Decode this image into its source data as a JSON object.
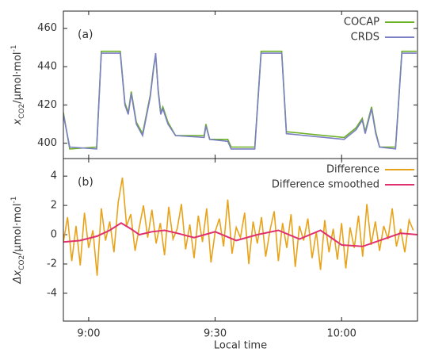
{
  "chart_data": [
    {
      "type": "line",
      "panel_label": "(a)",
      "ylabel": {
        "main": "x",
        "sub": "CO2",
        "unit": "/µmol·mol",
        "sup": "-1"
      },
      "xlim": [
        534,
        618
      ],
      "ylim": [
        392,
        469
      ],
      "yticks": [
        400,
        420,
        440,
        460
      ],
      "legend": "upper right",
      "series": [
        {
          "name": "COCAP",
          "color": "#6ab023",
          "x": [
            534,
            535.5,
            541.9,
            543,
            547.5,
            548.6,
            549.4,
            550.1,
            551.3,
            552.8,
            554.6,
            555.4,
            555.9,
            556.5,
            557.1,
            557.6,
            558.8,
            560.6,
            567.4,
            567.8,
            568.7,
            573,
            573.8,
            579.4,
            580.9,
            585.8,
            586.9,
            600.6,
            603.4,
            604.9,
            605.6,
            607.1,
            608.1,
            609,
            612.8,
            614.3,
            617.8
          ],
          "values": [
            416,
            397,
            398,
            448,
            448,
            421,
            416,
            427,
            411,
            405,
            425,
            440,
            446,
            428,
            416,
            419,
            411,
            404,
            404,
            410,
            402,
            402,
            398,
            398,
            448,
            448,
            406,
            403,
            408,
            413,
            406,
            419,
            406,
            398,
            398,
            448,
            448
          ]
        },
        {
          "name": "CRDS",
          "color": "#7b7fc4",
          "x": [
            534,
            535.5,
            541.9,
            543,
            547.5,
            548.6,
            549.4,
            550.1,
            551.3,
            552.8,
            554.6,
            555.4,
            555.9,
            556.5,
            557.1,
            557.6,
            558.8,
            560.6,
            567.4,
            567.8,
            568.7,
            573,
            573.8,
            579.4,
            580.9,
            585.8,
            586.9,
            600.6,
            603.4,
            604.9,
            605.6,
            607.1,
            608.1,
            609,
            612.8,
            614.3,
            617.8
          ],
          "values": [
            415,
            398,
            397,
            447,
            447,
            420,
            415,
            426,
            410,
            404,
            424,
            439,
            447,
            427,
            415,
            418,
            410,
            404,
            403,
            409,
            402,
            401,
            397,
            397,
            447,
            447,
            405,
            402,
            407,
            412,
            405,
            418,
            405,
            398,
            397,
            447,
            447
          ]
        }
      ]
    },
    {
      "type": "line",
      "panel_label": "(b)",
      "ylabel": {
        "main": "Δx",
        "sub": "CO2",
        "unit": "/µmol·mol",
        "sup": "-1"
      },
      "xlabel": "Local time",
      "xlim": [
        534,
        618
      ],
      "xticks": [
        {
          "value": 540,
          "label": "9:00"
        },
        {
          "value": 570,
          "label": "9:30"
        },
        {
          "value": 600,
          "label": "10:00"
        }
      ],
      "ylim": [
        -5.9,
        5.2
      ],
      "yticks": [
        -4,
        -2,
        0,
        2,
        4
      ],
      "legend": "upper right",
      "series": [
        {
          "name": "Difference",
          "color": "#e8a31b",
          "x": [
            534,
            535,
            536,
            537,
            538,
            539,
            540,
            541,
            542,
            543,
            544,
            545,
            546,
            547,
            548,
            549,
            550,
            551,
            552,
            553,
            554,
            555,
            556,
            557,
            558,
            559,
            560,
            561,
            562,
            563,
            564,
            565,
            566,
            567,
            568,
            569,
            570,
            571,
            572,
            573,
            574,
            575,
            576,
            577,
            578,
            579,
            580,
            581,
            582,
            583,
            584,
            585,
            586,
            587,
            588,
            589,
            590,
            591,
            592,
            593,
            594,
            595,
            596,
            597,
            598,
            599,
            600,
            601,
            602,
            603,
            604,
            605,
            606,
            607,
            608,
            609,
            610,
            611,
            612,
            613,
            614,
            615,
            616,
            617
          ],
          "values": [
            -0.5,
            1.2,
            -1.8,
            0.6,
            -2.1,
            1.5,
            -0.9,
            0.3,
            -2.8,
            1.8,
            -0.4,
            0.9,
            -1.2,
            2.2,
            3.9,
            0.6,
            1.4,
            -1.1,
            0.5,
            2.0,
            -0.2,
            1.7,
            -0.6,
            0.8,
            -1.4,
            1.9,
            -0.3,
            0.4,
            2.1,
            -1.0,
            0.7,
            -1.6,
            1.3,
            -0.5,
            1.8,
            -1.9,
            0.2,
            1.1,
            -0.8,
            2.4,
            -1.3,
            0.5,
            -0.2,
            1.5,
            -2.0,
            0.9,
            -0.6,
            1.2,
            -1.5,
            0.3,
            1.6,
            -1.8,
            0.8,
            -0.9,
            1.4,
            -2.2,
            0.6,
            -0.4,
            1.1,
            -1.6,
            0.2,
            -2.4,
            1.0,
            -1.2,
            0.4,
            -1.7,
            0.8,
            -2.3,
            0.5,
            -0.9,
            1.3,
            -1.5,
            2.1,
            -0.7,
            0.9,
            -1.1,
            0.6,
            -0.3,
            1.8,
            -0.8,
            0.4,
            -1.2,
            1.0,
            0.3
          ]
        },
        {
          "name": "Difference smoothed",
          "color": "#e0306e",
          "x": [
            534,
            538,
            542,
            545,
            547.7,
            550,
            552,
            555,
            558,
            561,
            565,
            570,
            575,
            580,
            585,
            590,
            595,
            600,
            605,
            610,
            614,
            618
          ],
          "values": [
            -0.5,
            -0.4,
            -0.1,
            0.3,
            0.8,
            0.4,
            0.0,
            0.2,
            0.3,
            0.1,
            -0.2,
            0.2,
            -0.4,
            0.0,
            0.3,
            -0.3,
            0.3,
            -0.7,
            -0.8,
            -0.3,
            0.1,
            0.0
          ]
        }
      ]
    }
  ]
}
